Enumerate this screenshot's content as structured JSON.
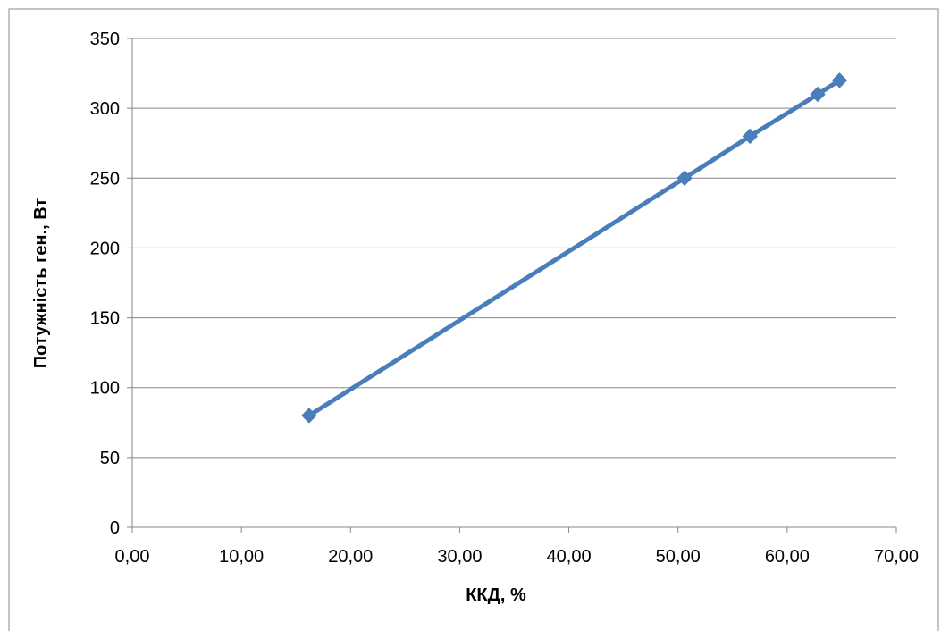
{
  "chart_data": {
    "type": "line",
    "title": "",
    "xlabel": "ККД, %",
    "ylabel": "Потужність ген., Вт",
    "xlim": [
      0,
      70
    ],
    "ylim": [
      0,
      350
    ],
    "x_ticks": [
      "0,00",
      "10,00",
      "20,00",
      "30,00",
      "40,00",
      "50,00",
      "60,00",
      "70,00"
    ],
    "y_ticks": [
      "0",
      "50",
      "100",
      "150",
      "200",
      "250",
      "300",
      "350"
    ],
    "grid": "horizontal",
    "legend": "none",
    "marker": "diamond",
    "series": [
      {
        "color": "#4a7ebb",
        "x": [
          16.2,
          50.6,
          56.6,
          62.8,
          64.8
        ],
        "y": [
          80,
          250,
          280,
          310,
          320
        ]
      }
    ]
  }
}
